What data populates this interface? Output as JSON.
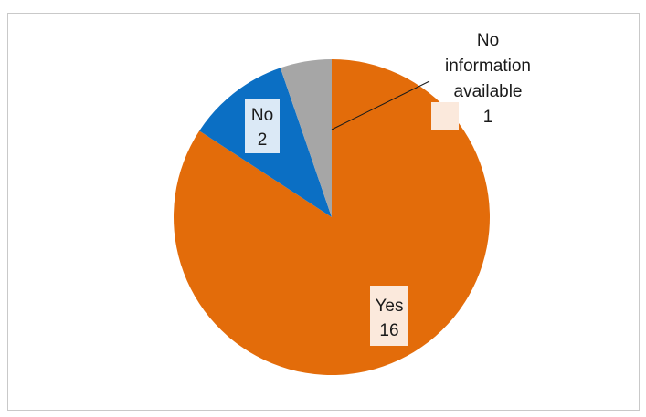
{
  "chart_data": {
    "type": "pie",
    "title": "",
    "categories": [
      "Yes",
      "No",
      "No information available"
    ],
    "values": [
      16,
      2,
      1
    ],
    "colors": [
      "#e36c0a",
      "#0b6fc4",
      "#a6a6a6"
    ],
    "data_labels": [
      {
        "category": "Yes",
        "value": "16"
      },
      {
        "category": "No",
        "value": "2"
      },
      {
        "category": "No information available",
        "value": "1"
      }
    ],
    "legend": false,
    "grid": false
  },
  "labels": {
    "yes_name": "Yes",
    "yes_value": "16",
    "no_name": "No",
    "no_value": "2",
    "na_line1": "No",
    "na_line2": "information",
    "na_line3": "available",
    "na_value": "1"
  }
}
